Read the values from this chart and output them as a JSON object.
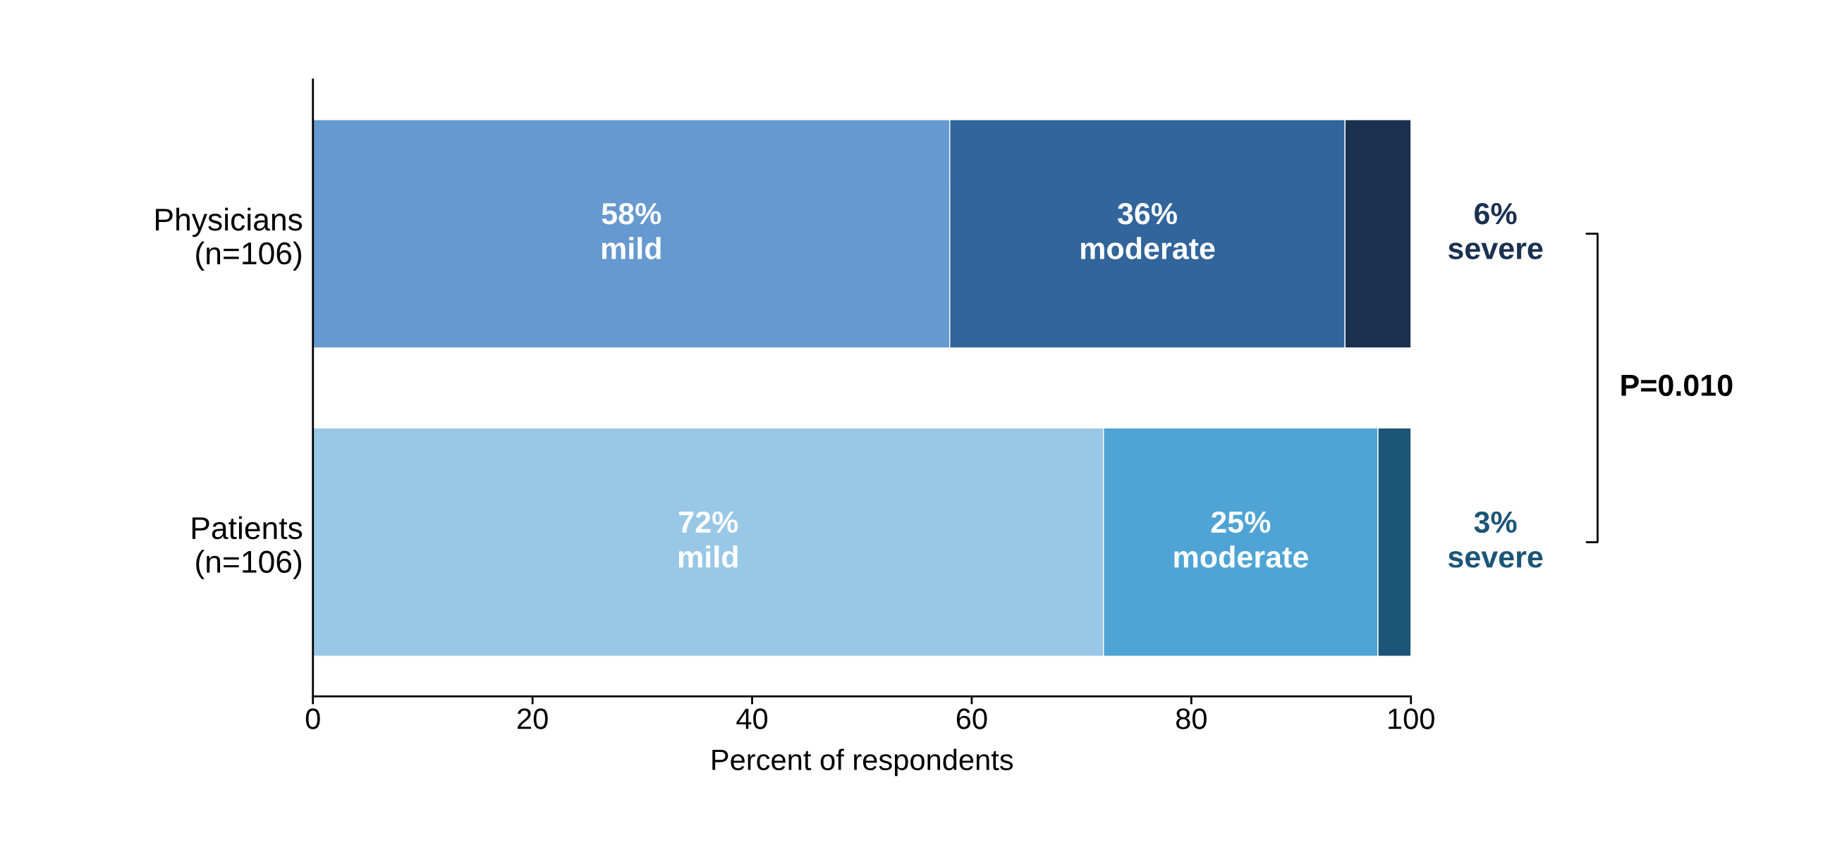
{
  "chart_data": {
    "type": "bar",
    "orientation": "horizontal",
    "stacked": true,
    "categories": [
      "Physicians\n(n=106)",
      "Patients\n(n=106)"
    ],
    "series": [
      {
        "name": "mild",
        "colors": [
          "#6699cf",
          "#99c8e6"
        ],
        "values": [
          58,
          72
        ],
        "value_labels": [
          "58%",
          "72%"
        ]
      },
      {
        "name": "moderate",
        "colors": [
          "#31659b",
          "#4fa4d5"
        ],
        "values": [
          36,
          25
        ],
        "value_labels": [
          "36%",
          "25%"
        ]
      },
      {
        "name": "severe",
        "colors": [
          "#1a3150",
          "#1c5578"
        ],
        "values": [
          6,
          3
        ],
        "value_labels": [
          "6%",
          "3%"
        ]
      }
    ],
    "xlabel": "Percent of respondents",
    "xlim": [
      0,
      100
    ],
    "xticks": [
      0,
      20,
      40,
      60,
      80,
      100
    ],
    "grid": false,
    "legend": false,
    "annotations": [
      "P=0.010"
    ]
  }
}
